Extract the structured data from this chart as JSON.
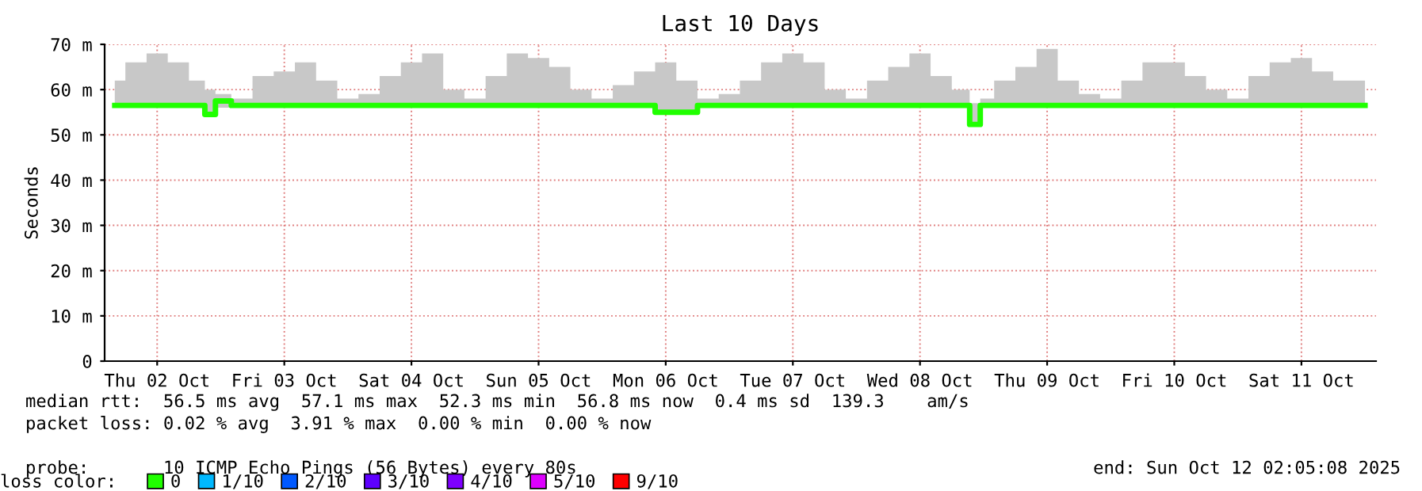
{
  "chart_data": {
    "type": "line",
    "title": "Last 10 Days",
    "ylabel": "Seconds",
    "xlim": [
      "2025-10-02T02:05",
      "2025-10-12T02:05"
    ],
    "xticks": [
      {
        "value": "2025-10-02T12:00",
        "label": "Thu 02 Oct"
      },
      {
        "value": "2025-10-03T12:00",
        "label": "Fri 03 Oct"
      },
      {
        "value": "2025-10-04T12:00",
        "label": "Sat 04 Oct"
      },
      {
        "value": "2025-10-05T12:00",
        "label": "Sun 05 Oct"
      },
      {
        "value": "2025-10-06T12:00",
        "label": "Mon 06 Oct"
      },
      {
        "value": "2025-10-07T12:00",
        "label": "Tue 07 Oct"
      },
      {
        "value": "2025-10-08T12:00",
        "label": "Wed 08 Oct"
      },
      {
        "value": "2025-10-09T12:00",
        "label": "Thu 09 Oct"
      },
      {
        "value": "2025-10-10T12:00",
        "label": "Fri 10 Oct"
      },
      {
        "value": "2025-10-11T12:00",
        "label": "Sat 11 Oct"
      }
    ],
    "ylim": [
      0,
      70
    ],
    "yticks": [
      0,
      {
        "value": 10,
        "label": "10 m"
      },
      {
        "value": 20,
        "label": "20 m"
      },
      {
        "value": 30,
        "label": "30 m"
      },
      {
        "value": 40,
        "label": "40 m"
      },
      {
        "value": 50,
        "label": "50 m"
      },
      {
        "value": 60,
        "label": "60 m"
      },
      {
        "value": 70,
        "label": "70 m"
      }
    ],
    "grid": true,
    "legend": "bottom",
    "legend_title": "loss color:",
    "series": [
      {
        "name": "0",
        "color": "#20ff00",
        "x": [
          "2025-10-02T04:00",
          "2025-10-02T08:00",
          "2025-10-02T12:00",
          "2025-10-02T16:00",
          "2025-10-02T20:00",
          "2025-10-02T22:00",
          "2025-10-03T00:00",
          "2025-10-03T04:00",
          "2025-10-03T08:00",
          "2025-10-03T12:00",
          "2025-10-03T16:00",
          "2025-10-03T20:00",
          "2025-10-04T00:00",
          "2025-10-04T04:00",
          "2025-10-04T08:00",
          "2025-10-04T12:00",
          "2025-10-04T16:00",
          "2025-10-04T20:00",
          "2025-10-05T00:00",
          "2025-10-05T04:00",
          "2025-10-05T08:00",
          "2025-10-05T12:00",
          "2025-10-05T16:00",
          "2025-10-05T20:00",
          "2025-10-06T00:00",
          "2025-10-06T04:00",
          "2025-10-06T08:00",
          "2025-10-06T12:00",
          "2025-10-06T16:00",
          "2025-10-06T20:00",
          "2025-10-07T00:00",
          "2025-10-07T04:00",
          "2025-10-07T08:00",
          "2025-10-07T12:00",
          "2025-10-07T16:00",
          "2025-10-07T20:00",
          "2025-10-08T00:00",
          "2025-10-08T04:00",
          "2025-10-08T08:00",
          "2025-10-08T12:00",
          "2025-10-08T16:00",
          "2025-10-08T20:00",
          "2025-10-08T22:45",
          "2025-10-09T00:00",
          "2025-10-09T04:00",
          "2025-10-09T08:00",
          "2025-10-09T12:00",
          "2025-10-09T16:00",
          "2025-10-09T20:00",
          "2025-10-10T00:00",
          "2025-10-10T04:00",
          "2025-10-10T08:00",
          "2025-10-10T12:00",
          "2025-10-10T16:00",
          "2025-10-10T20:00",
          "2025-10-11T00:00",
          "2025-10-11T04:00",
          "2025-10-11T08:00",
          "2025-10-11T12:00",
          "2025-10-11T16:00",
          "2025-10-11T20:00",
          "2025-10-12T00:00"
        ],
        "values": [
          56.5,
          56.5,
          56.5,
          56.5,
          56.5,
          54.5,
          57.5,
          56.5,
          56.5,
          56.5,
          56.5,
          56.5,
          56.5,
          56.5,
          56.5,
          56.5,
          56.5,
          56.5,
          56.5,
          56.5,
          56.5,
          56.5,
          56.5,
          56.5,
          56.5,
          56.5,
          56.5,
          55,
          55,
          56.5,
          56.5,
          56.5,
          56.5,
          56.5,
          56.5,
          56.5,
          56.5,
          56.5,
          56.5,
          56.5,
          56.5,
          56.5,
          52.3,
          56.5,
          56.5,
          56.5,
          56.5,
          56.5,
          56.5,
          56.5,
          56.5,
          56.5,
          56.5,
          56.5,
          56.5,
          56.5,
          56.5,
          56.5,
          56.5,
          56.5,
          56.5,
          56.5
        ],
        "lower": [
          56,
          56,
          56,
          56,
          56,
          54.5,
          56,
          56,
          56,
          56,
          56,
          56,
          56,
          56,
          56,
          56,
          56,
          56,
          56,
          56,
          56,
          56,
          56,
          56,
          56,
          56,
          56,
          55,
          55,
          56,
          56,
          56,
          56,
          56,
          56,
          56,
          56,
          56,
          56,
          56,
          56,
          56,
          52.3,
          56,
          56,
          56,
          56,
          56,
          56,
          56,
          56,
          56,
          56,
          56,
          56,
          56,
          56,
          56,
          56,
          56,
          56,
          56
        ],
        "upper": [
          62,
          66,
          68,
          66,
          62,
          60,
          59,
          58,
          63,
          64,
          66,
          62,
          58,
          59,
          63,
          66,
          68,
          60,
          58,
          63,
          68,
          67,
          65,
          60,
          58,
          61,
          64,
          66,
          62,
          58,
          59,
          62,
          66,
          68,
          66,
          60,
          58,
          62,
          65,
          68,
          63,
          60,
          57,
          58,
          62,
          65,
          69,
          62,
          59,
          58,
          62,
          66,
          66,
          63,
          60,
          58,
          63,
          66,
          67,
          64,
          62,
          62
        ]
      },
      {
        "name": "1/10",
        "color": "#00b8ff"
      },
      {
        "name": "2/10",
        "color": "#0059ff"
      },
      {
        "name": "3/10",
        "color": "#5e00ff"
      },
      {
        "name": "4/10",
        "color": "#7e00ff"
      },
      {
        "name": "5/10",
        "color": "#dd00ff"
      },
      {
        "name": "9/10",
        "color": "#ff0000"
      }
    ],
    "annotations": [
      "median rtt:  56.5 ms avg  57.1 ms max  52.3 ms min  56.8 ms now  0.4 ms sd  139.3    am/s",
      "packet loss: 0.02 % avg  3.91 % max  0.00 % min  0.00 % now",
      "probe:       10 ICMP Echo Pings (56 Bytes) every 80s",
      "end: Sun Oct 12 02:05:08 2025"
    ]
  }
}
